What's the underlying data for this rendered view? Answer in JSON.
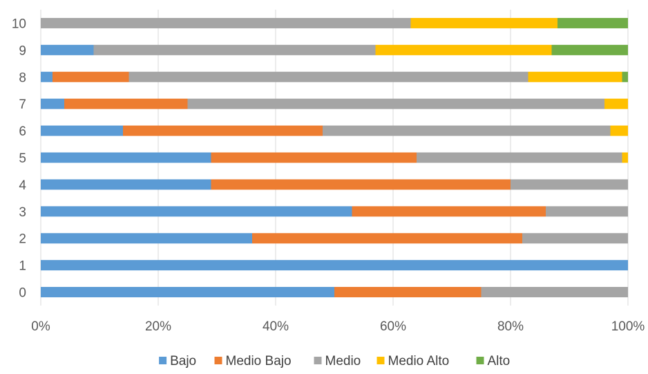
{
  "chart_data": {
    "type": "bar",
    "orientation": "horizontal",
    "stacked": "percent",
    "categories": [
      "0",
      "1",
      "2",
      "3",
      "4",
      "5",
      "6",
      "7",
      "8",
      "9",
      "10"
    ],
    "series": [
      {
        "name": "Bajo",
        "color": "#5B9BD5",
        "values": [
          50,
          100,
          36,
          53,
          29,
          29,
          14,
          4,
          2,
          9,
          0
        ]
      },
      {
        "name": "Medio Bajo",
        "color": "#ED7D31",
        "values": [
          25,
          0,
          46,
          33,
          51,
          35,
          34,
          21,
          13,
          0,
          0
        ]
      },
      {
        "name": "Medio",
        "color": "#A5A5A5",
        "values": [
          25,
          0,
          18,
          14,
          20,
          35,
          49,
          71,
          68,
          48,
          63
        ]
      },
      {
        "name": "Medio Alto",
        "color": "#FFC000",
        "values": [
          0,
          0,
          0,
          0,
          0,
          1,
          3,
          4,
          16,
          30,
          25
        ]
      },
      {
        "name": "Alto",
        "color": "#70AD47",
        "values": [
          0,
          0,
          0,
          0,
          0,
          0,
          0,
          0,
          1,
          13,
          12
        ]
      }
    ],
    "x_ticks": [
      "0%",
      "20%",
      "40%",
      "60%",
      "80%",
      "100%"
    ],
    "xlim": [
      0,
      100
    ],
    "title": "",
    "xlabel": "",
    "ylabel": "",
    "grid": true,
    "legend_position": "bottom"
  }
}
